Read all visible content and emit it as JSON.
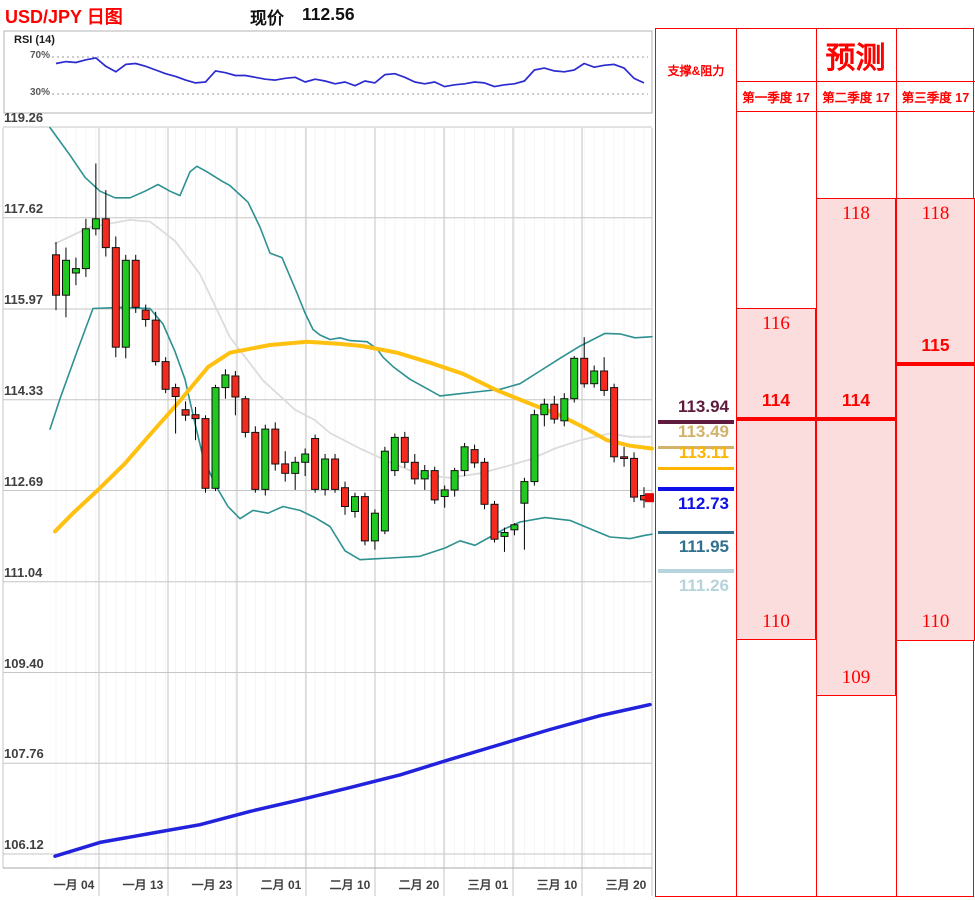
{
  "header": {
    "title": "USD/JPY 日图",
    "price_label": "现价",
    "price": "112.56"
  },
  "rsi_panel": {
    "label": "RSI (14)",
    "upper_tick": "70%",
    "lower_tick": "30%"
  },
  "panel": {
    "sr_header": "支撑&阻力",
    "forecast_header": "预测",
    "quarters": [
      "第一季度 17",
      "第二季度 17",
      "第三季度 17"
    ]
  },
  "colors": {
    "accent_red": "#ff0000",
    "candle_up": "#1fc91f",
    "candle_down": "#f52a1e",
    "candle_stroke": "#111111",
    "bollinger": "#2e9191",
    "bollinger_mid": "#dcdcdc",
    "ma_yellow": "#ffc010",
    "ma_blue": "#2222dd",
    "rsi_line": "#2b2bd0",
    "grid": "#c6c6c6",
    "faint_grid": "#f4f4f4",
    "axis_text": "#404040",
    "forecast_fill": "#fcdddd",
    "marker": "#e60000"
  },
  "chart_data": {
    "type": "candlestick",
    "title": "USD/JPY 日图",
    "current_price": 112.56,
    "y_axis_ticks": [
      119.26,
      117.62,
      115.97,
      114.33,
      112.69,
      111.04,
      109.4,
      107.76,
      106.12
    ],
    "x_axis_ticks": [
      "一月 04",
      "一月 13",
      "一月 23",
      "二月 01",
      "二月 10",
      "二月 20",
      "三月 01",
      "三月 10",
      "三月 20"
    ],
    "rsi_reference": [
      70,
      30
    ],
    "rsi_values": [
      63,
      65,
      64,
      67,
      69,
      60,
      54,
      62,
      63,
      60,
      56,
      52,
      49,
      45,
      42,
      43,
      55,
      53,
      50,
      50,
      48,
      46,
      45,
      47,
      48,
      43,
      46,
      44,
      41,
      43,
      39,
      44,
      42,
      51,
      52,
      48,
      43,
      41,
      43,
      38,
      40,
      41,
      43,
      42,
      38,
      40,
      41,
      44,
      56,
      58,
      55,
      54,
      56,
      63,
      59,
      61,
      62,
      58,
      47,
      42
    ],
    "candles": [
      [
        116.95,
        117.18,
        115.95,
        116.22
      ],
      [
        116.22,
        117.08,
        115.82,
        116.85
      ],
      [
        116.62,
        116.9,
        116.4,
        116.7
      ],
      [
        116.7,
        117.6,
        116.55,
        117.42
      ],
      [
        117.42,
        118.6,
        117.3,
        117.6
      ],
      [
        117.6,
        118.12,
        116.92,
        117.08
      ],
      [
        117.08,
        117.28,
        115.1,
        115.28
      ],
      [
        115.28,
        116.95,
        115.08,
        116.85
      ],
      [
        116.85,
        116.95,
        115.9,
        116.0
      ],
      [
        115.95,
        116.05,
        115.65,
        115.78
      ],
      [
        115.77,
        115.92,
        114.95,
        115.02
      ],
      [
        115.02,
        115.1,
        114.45,
        114.52
      ],
      [
        114.55,
        114.62,
        113.72,
        114.39
      ],
      [
        114.15,
        114.3,
        113.95,
        114.05
      ],
      [
        114.06,
        114.2,
        113.6,
        113.99
      ],
      [
        113.99,
        114.05,
        112.65,
        112.73
      ],
      [
        112.73,
        114.6,
        112.68,
        114.55
      ],
      [
        114.55,
        114.88,
        114.35,
        114.78
      ],
      [
        114.76,
        114.85,
        114.05,
        114.38
      ],
      [
        114.35,
        114.4,
        113.65,
        113.74
      ],
      [
        113.74,
        113.85,
        112.65,
        112.71
      ],
      [
        112.71,
        113.88,
        112.6,
        113.8
      ],
      [
        113.8,
        113.92,
        113.05,
        113.17
      ],
      [
        113.17,
        113.4,
        112.85,
        113.0
      ],
      [
        113.0,
        113.3,
        112.7,
        113.2
      ],
      [
        113.2,
        113.45,
        112.95,
        113.35
      ],
      [
        113.63,
        113.7,
        112.65,
        112.71
      ],
      [
        112.71,
        113.35,
        112.6,
        113.26
      ],
      [
        113.26,
        113.35,
        112.65,
        112.71
      ],
      [
        112.74,
        112.85,
        112.25,
        112.4
      ],
      [
        112.31,
        112.65,
        112.2,
        112.58
      ],
      [
        112.58,
        112.65,
        111.7,
        111.78
      ],
      [
        111.78,
        112.35,
        111.62,
        112.28
      ],
      [
        111.96,
        113.48,
        111.9,
        113.4
      ],
      [
        113.05,
        113.72,
        112.95,
        113.65
      ],
      [
        113.65,
        113.75,
        113.1,
        113.2
      ],
      [
        113.2,
        113.35,
        112.8,
        112.9
      ],
      [
        112.9,
        113.15,
        112.7,
        113.05
      ],
      [
        113.05,
        113.12,
        112.45,
        112.52
      ],
      [
        112.58,
        112.78,
        112.38,
        112.7
      ],
      [
        112.7,
        113.1,
        112.58,
        113.05
      ],
      [
        113.05,
        113.55,
        112.95,
        113.48
      ],
      [
        113.43,
        113.52,
        113.1,
        113.19
      ],
      [
        113.2,
        113.28,
        112.35,
        112.44
      ],
      [
        112.44,
        112.5,
        111.75,
        111.81
      ],
      [
        111.86,
        112.02,
        111.58,
        111.93
      ],
      [
        111.98,
        112.1,
        111.88,
        112.07
      ],
      [
        112.46,
        112.92,
        111.62,
        112.85
      ],
      [
        112.85,
        114.15,
        112.78,
        114.06
      ],
      [
        114.06,
        114.35,
        113.85,
        114.25
      ],
      [
        114.25,
        114.4,
        113.9,
        113.98
      ],
      [
        113.95,
        114.45,
        113.85,
        114.35
      ],
      [
        114.35,
        115.12,
        114.28,
        115.08
      ],
      [
        115.08,
        115.46,
        114.55,
        114.62
      ],
      [
        114.62,
        114.95,
        114.55,
        114.85
      ],
      [
        114.85,
        115.1,
        114.4,
        114.5
      ],
      [
        114.55,
        114.62,
        113.2,
        113.3
      ],
      [
        113.3,
        113.48,
        113.12,
        113.27
      ],
      [
        113.27,
        113.38,
        112.48,
        112.57
      ],
      [
        112.6,
        112.75,
        112.38,
        112.52
      ]
    ],
    "overlays": {
      "bollinger_upper": [
        [
          50,
          119.25
        ],
        [
          60,
          119.0
        ],
        [
          70,
          118.75
        ],
        [
          85,
          118.35
        ],
        [
          100,
          118.1
        ],
        [
          115,
          117.98
        ],
        [
          130,
          117.98
        ],
        [
          145,
          118.1
        ],
        [
          158,
          118.22
        ],
        [
          170,
          118.1
        ],
        [
          180,
          118.02
        ],
        [
          190,
          118.45
        ],
        [
          197,
          118.55
        ],
        [
          207,
          118.45
        ],
        [
          222,
          118.28
        ],
        [
          230,
          118.2
        ],
        [
          248,
          117.9
        ],
        [
          260,
          117.45
        ],
        [
          270,
          116.98
        ],
        [
          282,
          116.9
        ],
        [
          297,
          116.26
        ],
        [
          305,
          115.9
        ],
        [
          313,
          115.6
        ],
        [
          320,
          115.5
        ],
        [
          330,
          115.42
        ],
        [
          340,
          115.45
        ],
        [
          350,
          115.4
        ],
        [
          367,
          115.38
        ],
        [
          377,
          115.25
        ],
        [
          383,
          115.1
        ],
        [
          393,
          114.93
        ],
        [
          410,
          114.7
        ],
        [
          425,
          114.55
        ],
        [
          440,
          114.4
        ],
        [
          460,
          114.44
        ],
        [
          480,
          114.48
        ],
        [
          500,
          114.52
        ],
        [
          520,
          114.62
        ],
        [
          540,
          114.85
        ],
        [
          560,
          115.08
        ],
        [
          580,
          115.3
        ],
        [
          605,
          115.53
        ],
        [
          620,
          115.52
        ],
        [
          635,
          115.45
        ],
        [
          652,
          115.47
        ]
      ],
      "bollinger_mid": [
        [
          55,
          117.15
        ],
        [
          90,
          117.45
        ],
        [
          130,
          117.58
        ],
        [
          150,
          117.55
        ],
        [
          175,
          117.2
        ],
        [
          200,
          116.6
        ],
        [
          230,
          115.46
        ],
        [
          263,
          114.68
        ],
        [
          295,
          114.15
        ],
        [
          315,
          113.96
        ],
        [
          330,
          113.73
        ],
        [
          360,
          113.45
        ],
        [
          390,
          113.2
        ],
        [
          420,
          112.98
        ],
        [
          450,
          112.92
        ],
        [
          480,
          113.0
        ],
        [
          505,
          113.12
        ],
        [
          530,
          113.25
        ],
        [
          555,
          113.45
        ],
        [
          580,
          113.6
        ],
        [
          610,
          113.72
        ],
        [
          630,
          113.66
        ],
        [
          652,
          113.66
        ]
      ],
      "bollinger_lower": [
        [
          50,
          113.8
        ],
        [
          60,
          114.35
        ],
        [
          77,
          115.2
        ],
        [
          93,
          115.98
        ],
        [
          120,
          116.0
        ],
        [
          150,
          115.98
        ],
        [
          163,
          115.7
        ],
        [
          175,
          115.2
        ],
        [
          185,
          114.7
        ],
        [
          195,
          113.9
        ],
        [
          203,
          113.3
        ],
        [
          215,
          112.8
        ],
        [
          228,
          112.4
        ],
        [
          240,
          112.18
        ],
        [
          253,
          112.33
        ],
        [
          268,
          112.28
        ],
        [
          283,
          112.4
        ],
        [
          300,
          112.33
        ],
        [
          315,
          112.2
        ],
        [
          330,
          112.04
        ],
        [
          345,
          111.6
        ],
        [
          360,
          111.44
        ],
        [
          390,
          111.47
        ],
        [
          420,
          111.5
        ],
        [
          445,
          111.65
        ],
        [
          460,
          111.78
        ],
        [
          475,
          111.7
        ],
        [
          490,
          111.85
        ],
        [
          505,
          112.0
        ],
        [
          520,
          112.12
        ],
        [
          545,
          112.2
        ],
        [
          570,
          112.15
        ],
        [
          590,
          112.0
        ],
        [
          610,
          111.85
        ],
        [
          630,
          111.82
        ],
        [
          645,
          111.88
        ],
        [
          652,
          111.9
        ]
      ],
      "ma_yellow": [
        [
          55,
          111.95
        ],
        [
          73,
          112.28
        ],
        [
          98,
          112.7
        ],
        [
          125,
          113.18
        ],
        [
          151,
          113.72
        ],
        [
          178,
          114.27
        ],
        [
          208,
          114.92
        ],
        [
          230,
          115.18
        ],
        [
          270,
          115.32
        ],
        [
          307,
          115.38
        ],
        [
          340,
          115.34
        ],
        [
          363,
          115.3
        ],
        [
          397,
          115.18
        ],
        [
          430,
          115.0
        ],
        [
          463,
          114.8
        ],
        [
          497,
          114.5
        ],
        [
          530,
          114.26
        ],
        [
          560,
          114.05
        ],
        [
          585,
          113.82
        ],
        [
          607,
          113.6
        ],
        [
          630,
          113.5
        ],
        [
          652,
          113.45
        ]
      ],
      "ma_blue": [
        [
          55,
          106.08
        ],
        [
          100,
          106.33
        ],
        [
          150,
          106.49
        ],
        [
          200,
          106.65
        ],
        [
          250,
          106.89
        ],
        [
          300,
          107.1
        ],
        [
          350,
          107.32
        ],
        [
          400,
          107.55
        ],
        [
          450,
          107.83
        ],
        [
          500,
          108.1
        ],
        [
          550,
          108.37
        ],
        [
          600,
          108.62
        ],
        [
          650,
          108.82
        ]
      ]
    },
    "support_resistance": [
      {
        "value": 113.94,
        "color": "#5e1b3d",
        "label_side": "above",
        "thickness": 4
      },
      {
        "value": 113.49,
        "color": "#d2b26a",
        "label_side": "above",
        "thickness": 3
      },
      {
        "value": 113.11,
        "color": "#ffb400",
        "label_side": "above",
        "thickness": 3
      },
      {
        "value": 112.73,
        "color": "#0f0fe8",
        "label_side": "below",
        "thickness": 4
      },
      {
        "value": 111.95,
        "color": "#31708f",
        "label_side": "below",
        "thickness": 3
      },
      {
        "value": 111.26,
        "color": "#b7d3db",
        "label_side": "below",
        "thickness": 4
      }
    ],
    "forecast": [
      {
        "quarter": "第一季度 17",
        "high": 116,
        "mean": 114,
        "low": 110
      },
      {
        "quarter": "第二季度 17",
        "high": 118,
        "mean": 114,
        "low": 109
      },
      {
        "quarter": "第三季度 17",
        "high": 118,
        "mean": 115,
        "low": 110
      }
    ]
  }
}
